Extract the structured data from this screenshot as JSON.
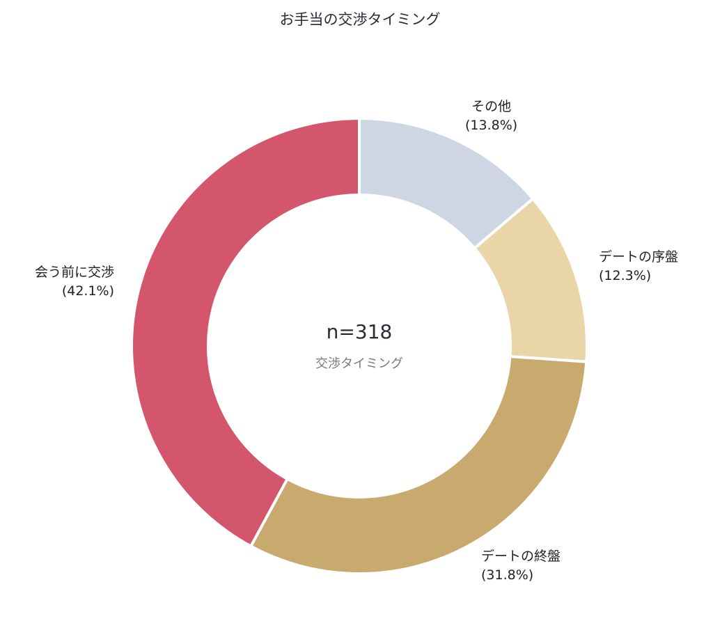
{
  "title": "お手当の交渉タイミング",
  "center": {
    "n_label": "n=318",
    "sub_label": "交渉タイミング"
  },
  "labels": {
    "other": {
      "name": "その他",
      "pct": "(13.8%)"
    },
    "early": {
      "name": "デートの序盤",
      "pct": "(12.3%)"
    },
    "late": {
      "name": "デートの終盤",
      "pct": "(31.8%)"
    },
    "before": {
      "name": "会う前に交渉",
      "pct": "(42.1%)"
    }
  },
  "chart_data": {
    "type": "pie",
    "variant": "donut",
    "title": "お手当の交渉タイミング",
    "center_text": [
      "n=318",
      "交渉タイミング"
    ],
    "start_angle": "12 o'clock",
    "direction": "clockwise",
    "categories": [
      "その他",
      "デートの序盤",
      "デートの終盤",
      "会う前に交渉"
    ],
    "values": [
      13.8,
      12.3,
      31.8,
      42.1
    ],
    "unit": "%",
    "colors": [
      "#cdd6e2",
      "#e9d5a8",
      "#c8a96e",
      "#d4566c"
    ],
    "n": 318
  }
}
